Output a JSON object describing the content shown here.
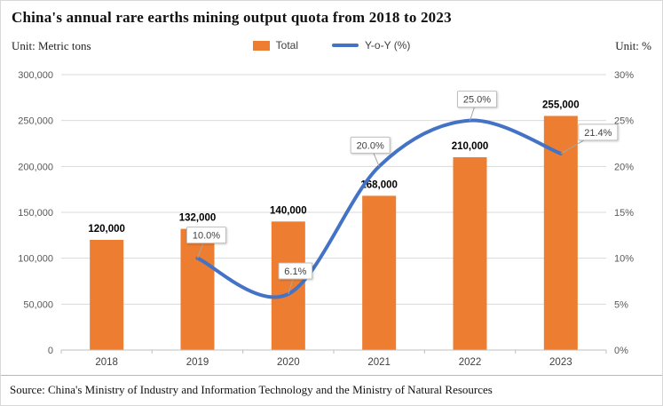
{
  "title": "China's annual rare earths mining output quota from 2018 to 2023",
  "left_unit": "Unit: Metric tons",
  "right_unit": "Unit: %",
  "source": "Source: China's Ministry of Industry and Information Technology and the Ministry of Natural Resources",
  "legend": [
    {
      "label": "Total",
      "swatch": "orange-bar-swatch"
    },
    {
      "label": "Y-o-Y (%)",
      "swatch": "blue-line-swatch"
    }
  ],
  "colors": {
    "bar": "#ED7D31",
    "line": "#4472C4",
    "grid": "#D9D9D9",
    "axis_line": "#BFBFBF",
    "axis_text": "#595959",
    "bar_label": "#000000",
    "callout_border": "#BFBFBF",
    "callout_text": "#404040"
  },
  "chart_data": {
    "type": "combo",
    "categories": [
      "2018",
      "2019",
      "2020",
      "2021",
      "2022",
      "2023"
    ],
    "series": [
      {
        "name": "Total",
        "type": "bar",
        "axis": "left",
        "values": [
          120000,
          132000,
          140000,
          168000,
          210000,
          255000
        ],
        "labels": [
          "120,000",
          "132,000",
          "140,000",
          "168,000",
          "210,000",
          "255,000"
        ]
      },
      {
        "name": "Y-o-Y (%)",
        "type": "line",
        "axis": "right",
        "x_start_index": 1,
        "values": [
          10.0,
          6.1,
          20.0,
          25.0,
          21.4
        ],
        "labels": [
          "10.0%",
          "6.1%",
          "20.0%",
          "25.0%",
          "21.4%"
        ]
      }
    ],
    "left_axis": {
      "min": 0,
      "max": 300000,
      "step": 50000,
      "tick_labels": [
        "0",
        "50,000",
        "100,000",
        "150,000",
        "200,000",
        "250,000",
        "300,000"
      ]
    },
    "right_axis": {
      "min": 0,
      "max": 30,
      "step": 5,
      "tick_labels": [
        "0%",
        "5%",
        "10%",
        "15%",
        "20%",
        "25%",
        "30%"
      ]
    },
    "grid": "horizontal",
    "legend_position": "top-center",
    "line_smooth": true
  }
}
